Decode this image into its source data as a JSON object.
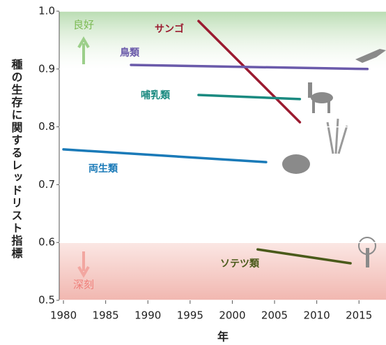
{
  "chart_data": {
    "type": "line",
    "x_label": "年",
    "y_label": "種の生存に関するレッドリスト指標",
    "annotations": [
      "良好",
      "深刻"
    ],
    "xlim": [
      1979.5,
      2018.2
    ],
    "xticks": [
      1980,
      1985,
      1990,
      1995,
      2000,
      2005,
      2010,
      2015
    ],
    "ylim": [
      0.5,
      1.0
    ],
    "yticks": [
      0.5,
      0.6,
      0.7,
      0.8,
      0.9,
      {
        "value": 1.0,
        "label": "1.0"
      }
    ],
    "grid": true,
    "series": [
      {
        "name": "サンゴ",
        "color": "#9b1b30",
        "x": [
          1996,
          2008
        ],
        "values": [
          0.983,
          0.808
        ]
      },
      {
        "name": "鳥類",
        "color": "#6a5aaa",
        "x": [
          1988,
          2016
        ],
        "values": [
          0.907,
          0.9
        ]
      },
      {
        "name": "哺乳類",
        "color": "#1a8a80",
        "x": [
          1996,
          2008
        ],
        "values": [
          0.855,
          0.848
        ]
      },
      {
        "name": "両生類",
        "color": "#1a7ab8",
        "x": [
          1980,
          2004
        ],
        "values": [
          0.761,
          0.739
        ]
      },
      {
        "name": "ソテツ類",
        "color": "#4a5a1a",
        "x": [
          2003,
          2014
        ],
        "values": [
          0.588,
          0.564
        ]
      }
    ]
  }
}
